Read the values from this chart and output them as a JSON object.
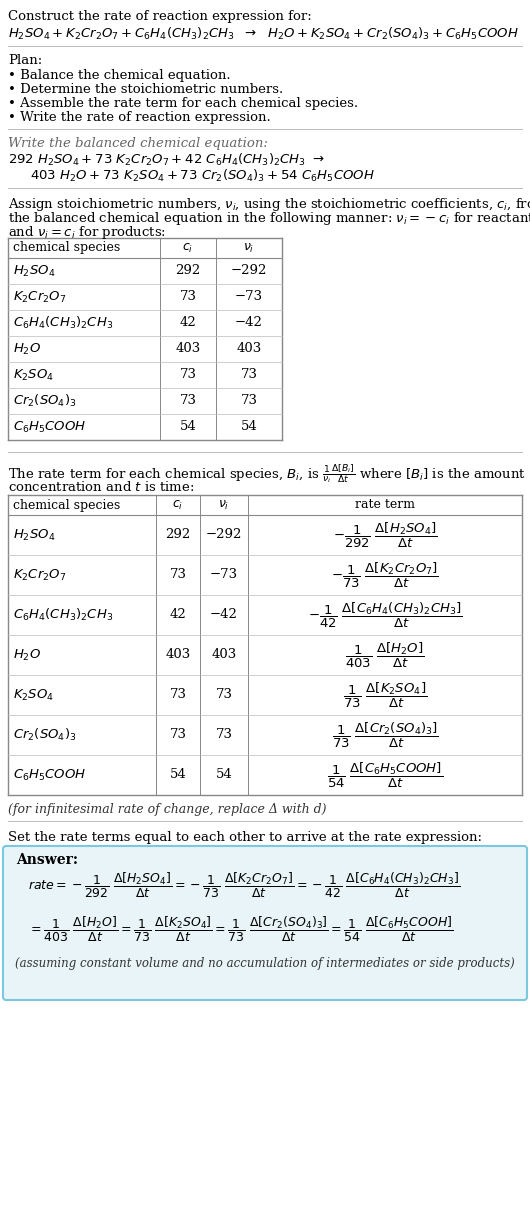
{
  "bg_color": "#ffffff",
  "text_color": "#000000",
  "title_line1": "Construct the rate of reaction expression for:",
  "plan_header": "Plan:",
  "plan_items": [
    "• Balance the chemical equation.",
    "• Determine the stoichiometric numbers.",
    "• Assemble the rate term for each chemical species.",
    "• Write the rate of reaction expression."
  ],
  "balanced_header": "Write the balanced chemical equation:",
  "stoich_text1": "Assign stoichiometric numbers, ",
  "stoich_text2": "the balanced chemical equation in the following manner: ",
  "stoich_text3": "and ",
  "table1_rows": [
    [
      "H_2SO_4",
      "292",
      "-292"
    ],
    [
      "K_2Cr_2O_7",
      "73",
      "-73"
    ],
    [
      "C_6H_4(CH_3)_2CH_3",
      "42",
      "-42"
    ],
    [
      "H_2O",
      "403",
      "403"
    ],
    [
      "K_2SO_4",
      "73",
      "73"
    ],
    [
      "Cr_2(SO_4)_3",
      "73",
      "73"
    ],
    [
      "C_6H_5COOH",
      "54",
      "54"
    ]
  ],
  "infinitesimal_note": "(for infinitesimal rate of change, replace Δ with d)",
  "set_rate_header": "Set the rate terms equal to each other to arrive at the rate expression:",
  "answer_box_color": "#e8f4f8",
  "answer_border_color": "#7cc8e0",
  "answer_label": "Answer:",
  "answer_note": "(assuming constant volume and no accumulation of intermediates or side products)",
  "table1_ci": [
    "292",
    "73",
    "42",
    "403",
    "73",
    "73",
    "54"
  ],
  "table1_vi": [
    "-292",
    "-73",
    "-42",
    "403",
    "73",
    "73",
    "54"
  ]
}
